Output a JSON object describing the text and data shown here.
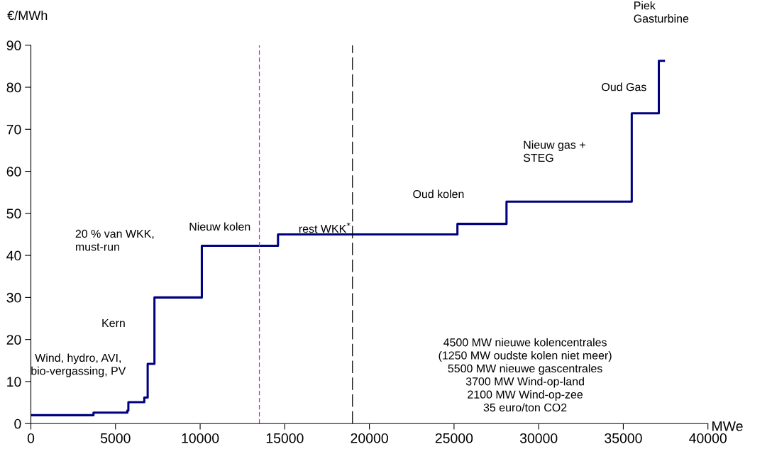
{
  "chart_data": {
    "type": "step",
    "xlabel": "MWe",
    "ylabel": "€/MWh",
    "x": [
      0,
      3700,
      5700,
      5760,
      6700,
      6900,
      7300,
      10100,
      14600,
      25200,
      28100,
      35500,
      37100,
      37400
    ],
    "series": [
      {
        "color": "#000080",
        "values": [
          2.0,
          2.6,
          3.1,
          5.1,
          6.2,
          14.2,
          30,
          42.3,
          45,
          47.5,
          52.8,
          73.8,
          86.3,
          86.3
        ]
      }
    ],
    "xlim": [
      0,
      40000
    ],
    "xticks": [
      0,
      5000,
      10000,
      15000,
      20000,
      25000,
      30000,
      35000,
      40000
    ],
    "ylim": [
      0,
      90
    ],
    "yticks": [
      0,
      10,
      20,
      30,
      40,
      50,
      60,
      70,
      80,
      90
    ],
    "grid": false,
    "legend": false,
    "marker": "none",
    "line_style": "solid",
    "ref_lines": [
      {
        "axis": "x",
        "value": 13500,
        "color": "#ff00ff",
        "line_style": "dashed"
      },
      {
        "axis": "x",
        "value": 19000,
        "color": "#000000",
        "line_style": "dashed"
      }
    ],
    "annotations": [
      "Wind, hydro, AVI,\nbio-vergassing, PV",
      "Kern",
      "20 % van WKK,\nmust-run",
      "Nieuw kolen",
      "rest WKK$^{*}$",
      "Oud kolen",
      "Nieuw gas +\nSTEG",
      "Oud Gas",
      "Piek\nGasturbine",
      "4500 MW nieuwe kolencentrales\n(1250 MW oudste kolen niet meer)\n5500 MW nieuwe gascentrales\n3700 MW Wind-op-land\n2100 MW Wind-op-zee\n35 euro/ton CO2"
    ]
  }
}
